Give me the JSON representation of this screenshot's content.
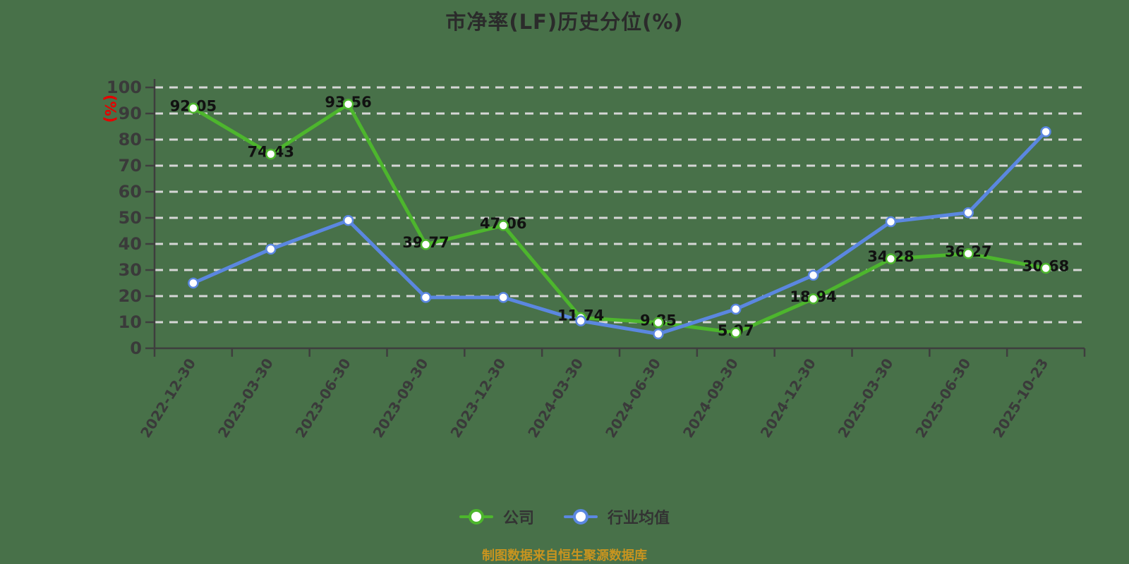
{
  "title": "市净率(LF)历史分位(%)",
  "y_axis_unit": "(%)",
  "source_note": "制图数据来自恒生聚源数据库",
  "legend": [
    {
      "label": "公司",
      "color": "#4db62d"
    },
    {
      "label": "行业均值",
      "color": "#5b87e0"
    }
  ],
  "colors": {
    "background": "#487149",
    "gridline": "#d6d6d6",
    "axis": "#3e3e3e",
    "tick_label": "#3a3a3a",
    "data_label": "#111111",
    "company_series": "#4db62d",
    "industry_series": "#5b87e0",
    "marker_fill": "#ffffff",
    "unit_label": "#e60000",
    "source_note": "#c9941f",
    "title": "#2b2b2b",
    "legend_text": "#333333"
  },
  "chart_data": {
    "type": "line",
    "title": "市净率(LF)历史分位(%)",
    "xlabel": "",
    "ylabel": "(%)",
    "ylim": [
      0,
      100
    ],
    "y_ticks": [
      0,
      10,
      20,
      30,
      40,
      50,
      60,
      70,
      80,
      90,
      100
    ],
    "grid": "horizontal-dashed",
    "legend_position": "bottom",
    "categories": [
      "2022-12-30",
      "2023-03-30",
      "2023-06-30",
      "2023-09-30",
      "2023-12-30",
      "2024-03-30",
      "2024-06-30",
      "2024-09-30",
      "2024-12-30",
      "2025-03-30",
      "2025-06-30",
      "2025-10-23"
    ],
    "series": [
      {
        "name": "公司",
        "color": "#4db62d",
        "data_labels": true,
        "values": [
          92.05,
          74.43,
          93.56,
          39.77,
          47.06,
          11.74,
          9.85,
          5.97,
          18.94,
          34.28,
          36.27,
          30.68
        ]
      },
      {
        "name": "行业均值",
        "color": "#5b87e0",
        "data_labels": false,
        "values": [
          25,
          38,
          49,
          19.5,
          19.5,
          10.5,
          5.5,
          15,
          28,
          48.5,
          52,
          83
        ]
      }
    ]
  }
}
